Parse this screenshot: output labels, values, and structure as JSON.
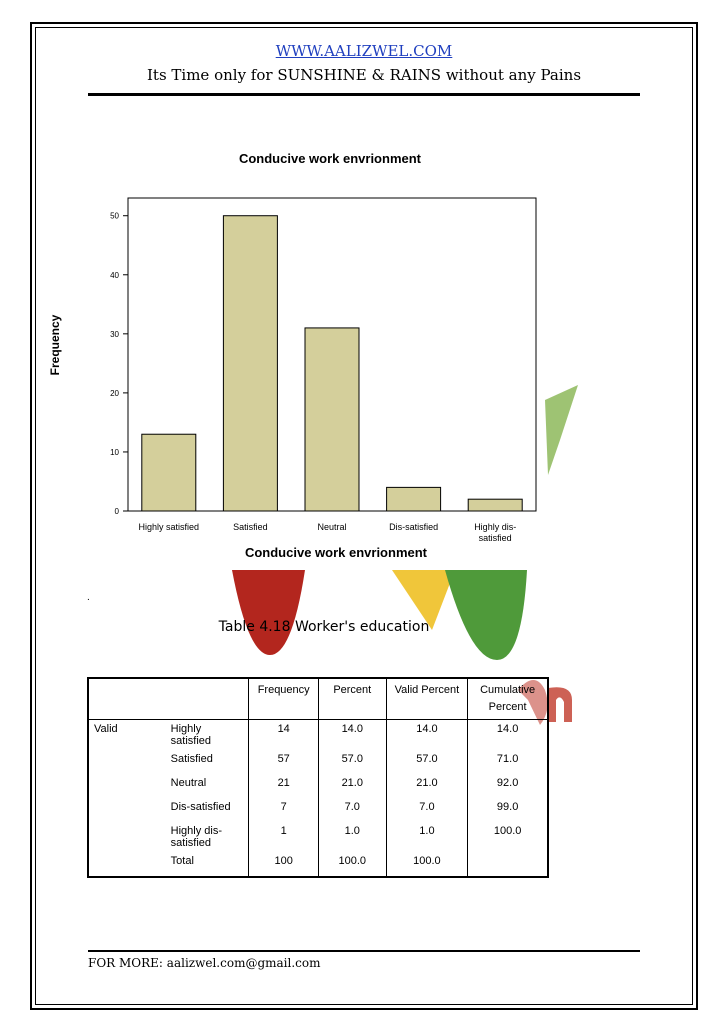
{
  "header": {
    "site": "WWW.AALIZWEL.COM",
    "tagline": "Its Time only for SUNSHINE & RAINS without any Pains"
  },
  "chart_data": {
    "type": "bar",
    "title": "Conducive work envrionment",
    "xlabel": "Conducive work envrionment",
    "ylabel": "Frequency",
    "categories": [
      "Highly satisfied",
      "Satisfied",
      "Neutral",
      "Dis-satisfied",
      "Highly dis-satisfied"
    ],
    "category_lines": [
      [
        "Highly satisfied"
      ],
      [
        "Satisfied"
      ],
      [
        "Neutral"
      ],
      [
        "Dis-satisfied"
      ],
      [
        "Highly dis-",
        "satisfied"
      ]
    ],
    "values": [
      13,
      50,
      31,
      4,
      2
    ],
    "yticks": [
      0,
      10,
      20,
      30,
      40,
      50
    ],
    "ylim": [
      0,
      53
    ],
    "bar_color": "#d4cf9b",
    "grid": false
  },
  "marker": ".",
  "table": {
    "caption": "Table 4.18 Worker's education",
    "headers": [
      "Frequency",
      "Percent",
      "Valid Percent",
      "Cumulative Percent"
    ],
    "group_label": "Valid",
    "rows": [
      {
        "label": "Highly satisfied",
        "frequency": "14",
        "percent": "14.0",
        "valid_percent": "14.0",
        "cumulative": "14.0"
      },
      {
        "label": "Satisfied",
        "frequency": "57",
        "percent": "57.0",
        "valid_percent": "57.0",
        "cumulative": "71.0"
      },
      {
        "label": "Neutral",
        "frequency": "21",
        "percent": "21.0",
        "valid_percent": "21.0",
        "cumulative": "92.0"
      },
      {
        "label": "Dis-satisfied",
        "frequency": "7",
        "percent": "7.0",
        "valid_percent": "7.0",
        "cumulative": "99.0"
      },
      {
        "label": "Highly dis-satisfied",
        "frequency": "1",
        "percent": "1.0",
        "valid_percent": "1.0",
        "cumulative": "100.0"
      },
      {
        "label": "Total",
        "frequency": "100",
        "percent": "100.0",
        "valid_percent": "100.0",
        "cumulative": ""
      }
    ]
  },
  "footer": {
    "text": "FOR MORE: aalizwel.com@gmail.com"
  }
}
